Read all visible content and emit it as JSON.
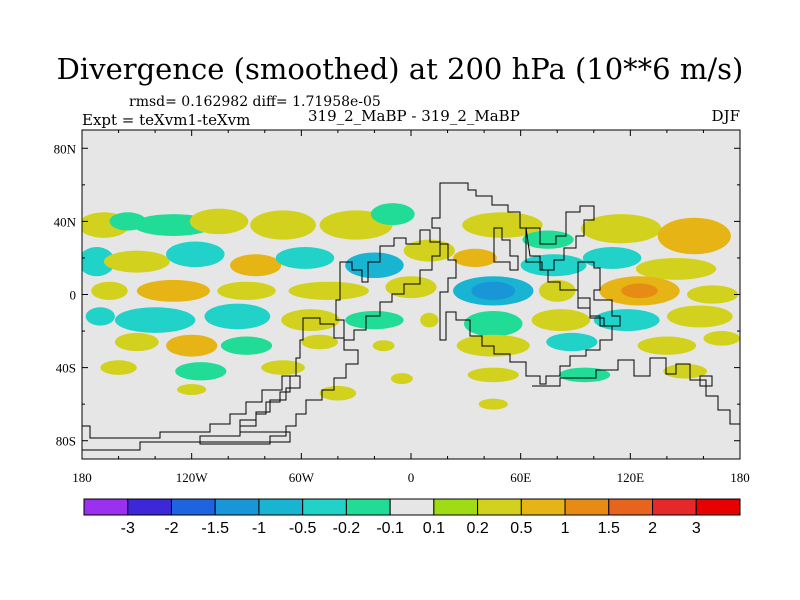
{
  "header": {
    "title": "Divergence (smoothed) at 200 hPa (10**6 m/s)",
    "stats": "rmsd= 0.162982 diff= 1.71958e-05",
    "expt": "Expt = teXvm1-teXvm",
    "cases": "319_2_MaBP - 319_2_MaBP",
    "season": "DJF"
  },
  "chart_data": {
    "type": "heatmap",
    "title": "Divergence (smoothed) at 200 hPa (10**6 m/s)",
    "x_axis": {
      "range": [
        -180,
        180
      ],
      "ticks": [
        -180,
        -120,
        -60,
        0,
        60,
        120,
        180
      ],
      "tick_labels": [
        "180",
        "120W",
        "60W",
        "0",
        "60E",
        "120E",
        "180"
      ]
    },
    "y_axis": {
      "range": [
        -90,
        90
      ],
      "ticks": [
        80,
        40,
        0,
        -40,
        -80
      ],
      "tick_labels": [
        "80N",
        "40N",
        "0",
        "40S",
        "80S"
      ]
    },
    "background_color": "#e6e6e6",
    "colorbar": {
      "labels": [
        "-3",
        "-2",
        "-1.5",
        "-1",
        "-0.5",
        "-0.2",
        "-0.1",
        "0.1",
        "0.2",
        "0.5",
        "1",
        "1.5",
        "2",
        "3"
      ],
      "colors": [
        "#9b30f0",
        "#3c28d8",
        "#1e64e0",
        "#1896d8",
        "#18b4d2",
        "#20d2c8",
        "#20dc96",
        "#e6e6e6",
        "#a0dc14",
        "#d2d21e",
        "#e6b414",
        "#e68c14",
        "#e6641e",
        "#e62828",
        "#e60000"
      ]
    },
    "blobs": [
      {
        "lon": -168,
        "lat": 38,
        "rx": 14,
        "ry": 7,
        "level": "0.2"
      },
      {
        "lon": -155,
        "lat": 40,
        "rx": 10,
        "ry": 5,
        "level": "-0.1"
      },
      {
        "lon": -130,
        "lat": 38,
        "rx": 22,
        "ry": 6,
        "level": "-0.1"
      },
      {
        "lon": -105,
        "lat": 40,
        "rx": 16,
        "ry": 7,
        "level": "0.2"
      },
      {
        "lon": -70,
        "lat": 38,
        "rx": 18,
        "ry": 8,
        "level": "0.2"
      },
      {
        "lon": -30,
        "lat": 38,
        "rx": 20,
        "ry": 8,
        "level": "0.2"
      },
      {
        "lon": -10,
        "lat": 44,
        "rx": 12,
        "ry": 6,
        "level": "-0.1"
      },
      {
        "lon": 50,
        "lat": 38,
        "rx": 22,
        "ry": 7,
        "level": "0.2"
      },
      {
        "lon": 75,
        "lat": 30,
        "rx": 14,
        "ry": 5,
        "level": "-0.1"
      },
      {
        "lon": 115,
        "lat": 36,
        "rx": 22,
        "ry": 8,
        "level": "0.2"
      },
      {
        "lon": 155,
        "lat": 32,
        "rx": 20,
        "ry": 10,
        "level": "0.5"
      },
      {
        "lon": -172,
        "lat": 18,
        "rx": 10,
        "ry": 8,
        "level": "-0.2"
      },
      {
        "lon": -150,
        "lat": 18,
        "rx": 18,
        "ry": 6,
        "level": "0.2"
      },
      {
        "lon": -118,
        "lat": 22,
        "rx": 16,
        "ry": 7,
        "level": "-0.2"
      },
      {
        "lon": -85,
        "lat": 16,
        "rx": 14,
        "ry": 6,
        "level": "0.5"
      },
      {
        "lon": -58,
        "lat": 20,
        "rx": 16,
        "ry": 6,
        "level": "-0.2"
      },
      {
        "lon": -20,
        "lat": 16,
        "rx": 16,
        "ry": 7,
        "level": "-0.5"
      },
      {
        "lon": 10,
        "lat": 24,
        "rx": 14,
        "ry": 6,
        "level": "0.2"
      },
      {
        "lon": 35,
        "lat": 20,
        "rx": 12,
        "ry": 5,
        "level": "0.5"
      },
      {
        "lon": 78,
        "lat": 16,
        "rx": 18,
        "ry": 6,
        "level": "-0.2"
      },
      {
        "lon": 110,
        "lat": 20,
        "rx": 16,
        "ry": 6,
        "level": "-0.2"
      },
      {
        "lon": 145,
        "lat": 14,
        "rx": 22,
        "ry": 6,
        "level": "0.2"
      },
      {
        "lon": -165,
        "lat": 2,
        "rx": 10,
        "ry": 5,
        "level": "0.2"
      },
      {
        "lon": -130,
        "lat": 2,
        "rx": 20,
        "ry": 6,
        "level": "0.5"
      },
      {
        "lon": -90,
        "lat": 2,
        "rx": 16,
        "ry": 5,
        "level": "0.2"
      },
      {
        "lon": -45,
        "lat": 2,
        "rx": 22,
        "ry": 5,
        "level": "0.2"
      },
      {
        "lon": 0,
        "lat": 4,
        "rx": 14,
        "ry": 6,
        "level": "0.2"
      },
      {
        "lon": 45,
        "lat": 2,
        "rx": 22,
        "ry": 8,
        "level": "-0.5"
      },
      {
        "lon": 45,
        "lat": 2,
        "rx": 12,
        "ry": 5,
        "level": "-1"
      },
      {
        "lon": 80,
        "lat": 2,
        "rx": 10,
        "ry": 6,
        "level": "0.2"
      },
      {
        "lon": 125,
        "lat": 2,
        "rx": 22,
        "ry": 8,
        "level": "0.5"
      },
      {
        "lon": 125,
        "lat": 2,
        "rx": 10,
        "ry": 4,
        "level": "1"
      },
      {
        "lon": 165,
        "lat": 0,
        "rx": 14,
        "ry": 5,
        "level": "0.2"
      },
      {
        "lon": -170,
        "lat": -12,
        "rx": 8,
        "ry": 5,
        "level": "-0.2"
      },
      {
        "lon": -140,
        "lat": -14,
        "rx": 22,
        "ry": 7,
        "level": "-0.2"
      },
      {
        "lon": -95,
        "lat": -12,
        "rx": 18,
        "ry": 7,
        "level": "-0.2"
      },
      {
        "lon": -55,
        "lat": -14,
        "rx": 16,
        "ry": 6,
        "level": "0.2"
      },
      {
        "lon": -20,
        "lat": -14,
        "rx": 16,
        "ry": 5,
        "level": "-0.1"
      },
      {
        "lon": 10,
        "lat": -14,
        "rx": 5,
        "ry": 4,
        "level": "0.2"
      },
      {
        "lon": 45,
        "lat": -16,
        "rx": 16,
        "ry": 7,
        "level": "-0.1"
      },
      {
        "lon": 82,
        "lat": -14,
        "rx": 16,
        "ry": 6,
        "level": "0.2"
      },
      {
        "lon": 118,
        "lat": -14,
        "rx": 18,
        "ry": 6,
        "level": "-0.2"
      },
      {
        "lon": 158,
        "lat": -12,
        "rx": 18,
        "ry": 6,
        "level": "0.2"
      },
      {
        "lon": -150,
        "lat": -26,
        "rx": 12,
        "ry": 5,
        "level": "0.2"
      },
      {
        "lon": -120,
        "lat": -28,
        "rx": 14,
        "ry": 6,
        "level": "0.5"
      },
      {
        "lon": -90,
        "lat": -28,
        "rx": 14,
        "ry": 5,
        "level": "-0.1"
      },
      {
        "lon": -50,
        "lat": -26,
        "rx": 10,
        "ry": 4,
        "level": "0.2"
      },
      {
        "lon": -15,
        "lat": -28,
        "rx": 6,
        "ry": 3,
        "level": "0.2"
      },
      {
        "lon": 45,
        "lat": -28,
        "rx": 20,
        "ry": 6,
        "level": "0.2"
      },
      {
        "lon": 88,
        "lat": -26,
        "rx": 14,
        "ry": 5,
        "level": "-0.2"
      },
      {
        "lon": 140,
        "lat": -28,
        "rx": 16,
        "ry": 5,
        "level": "0.2"
      },
      {
        "lon": 170,
        "lat": -24,
        "rx": 10,
        "ry": 4,
        "level": "0.2"
      },
      {
        "lon": -160,
        "lat": -40,
        "rx": 10,
        "ry": 4,
        "level": "0.2"
      },
      {
        "lon": -115,
        "lat": -42,
        "rx": 14,
        "ry": 5,
        "level": "-0.1"
      },
      {
        "lon": -70,
        "lat": -40,
        "rx": 12,
        "ry": 4,
        "level": "0.2"
      },
      {
        "lon": -5,
        "lat": -46,
        "rx": 6,
        "ry": 3,
        "level": "0.2"
      },
      {
        "lon": 45,
        "lat": -44,
        "rx": 14,
        "ry": 4,
        "level": "0.2"
      },
      {
        "lon": 95,
        "lat": -44,
        "rx": 14,
        "ry": 4,
        "level": "-0.1"
      },
      {
        "lon": 150,
        "lat": -42,
        "rx": 12,
        "ry": 4,
        "level": "0.2"
      },
      {
        "lon": -40,
        "lat": -54,
        "rx": 10,
        "ry": 4,
        "level": "0.2"
      },
      {
        "lon": -120,
        "lat": -52,
        "rx": 8,
        "ry": 3,
        "level": "0.2"
      },
      {
        "lon": 45,
        "lat": -60,
        "rx": 8,
        "ry": 3,
        "level": "0.2"
      }
    ]
  }
}
